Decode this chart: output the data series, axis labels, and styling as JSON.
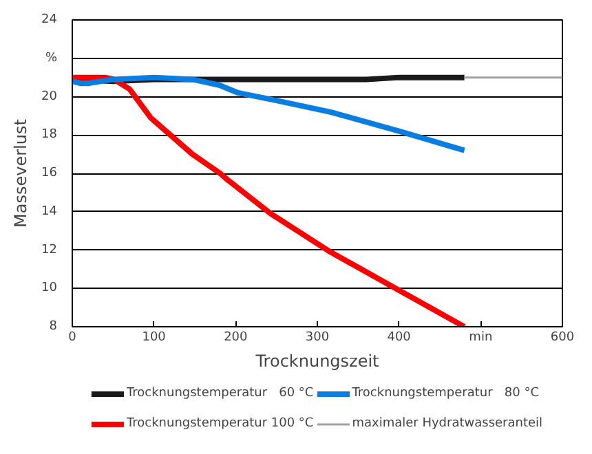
{
  "chart_data": {
    "type": "line",
    "xlabel": "Trocknungszeit",
    "ylabel": "Masseverlust",
    "xlim": [
      0,
      600
    ],
    "ylim": [
      8,
      24
    ],
    "xticks": [
      0,
      100,
      200,
      300,
      400,
      {
        "value": 500,
        "label": "min"
      },
      600
    ],
    "yticks": [
      8,
      10,
      12,
      14,
      16,
      18,
      20,
      {
        "value": 22,
        "label": "%"
      },
      24
    ],
    "grid": "y",
    "legend": "bottom",
    "line_style": "solid",
    "marker": "none",
    "series": [
      {
        "name": "Trocknungstemperatur   60 °C",
        "color": "#1a1a1a",
        "x": [
          0,
          50,
          100,
          200,
          300,
          360,
          400,
          480
        ],
        "values": [
          20.9,
          20.8,
          20.9,
          20.9,
          20.9,
          20.9,
          21.0,
          21.0
        ]
      },
      {
        "name": "Trocknungstemperatur 100 °C",
        "color": "#ff0000",
        "x": [
          0,
          40,
          51,
          70,
          96,
          147,
          181,
          189,
          243,
          316,
          400,
          480
        ],
        "values": [
          21.0,
          21.0,
          20.9,
          20.4,
          18.9,
          17.0,
          16.0,
          15.7,
          13.9,
          11.9,
          9.9,
          8.0
        ]
      },
      {
        "name": "Trocknungstemperatur   80 °C",
        "color": "#0a7ee0",
        "x": [
          0,
          10,
          20,
          50,
          100,
          147,
          180,
          203,
          250,
          316,
          400,
          480
        ],
        "values": [
          20.8,
          20.7,
          20.7,
          20.9,
          21.0,
          20.9,
          20.6,
          20.2,
          19.8,
          19.2,
          18.2,
          17.2
        ]
      },
      {
        "name": "maximaler Hydratwasseranteil",
        "color": "#a0a0a0",
        "x": [
          480,
          600
        ],
        "values": [
          21.0,
          21.0
        ]
      }
    ]
  }
}
